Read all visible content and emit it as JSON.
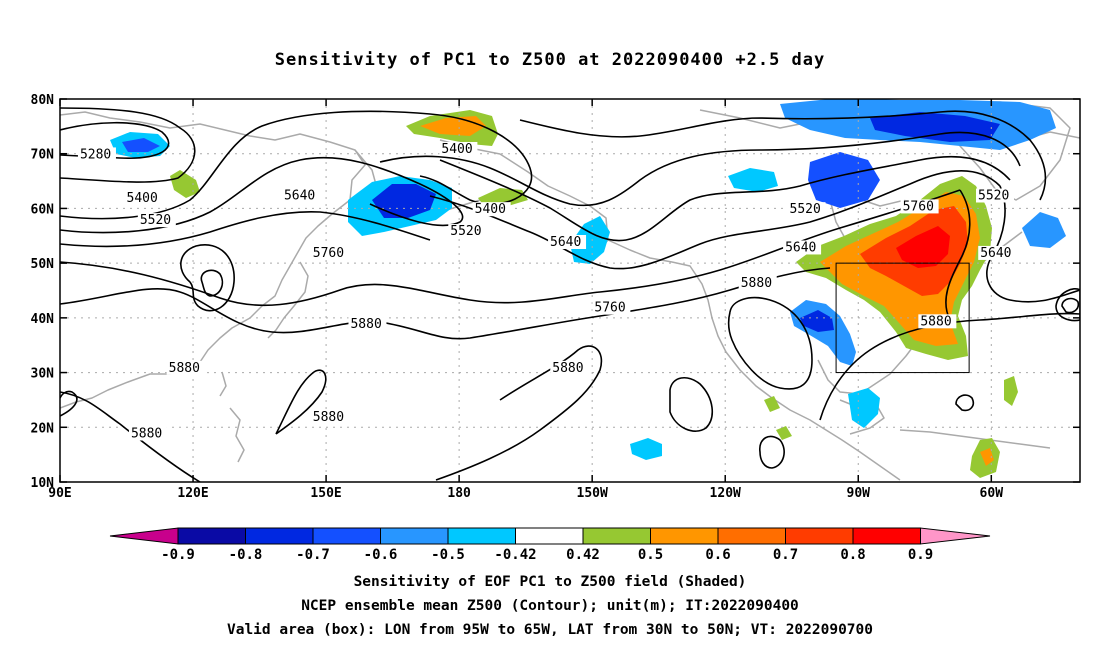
{
  "title": "Sensitivity of PC1 to Z500 at 2022090400 +2.5 day",
  "captions": [
    "Sensitivity of EOF PC1 to Z500 field (Shaded)",
    "NCEP ensemble mean Z500 (Contour); unit(m); IT:2022090400",
    "Valid area (box): LON from 95W to 65W, LAT from 30N to 50N; VT: 2022090700"
  ],
  "map": {
    "lon_range": [
      90,
      320
    ],
    "lat_range": [
      10,
      80
    ],
    "lat_ticks": [
      {
        "lat": 80,
        "label": "80N"
      },
      {
        "lat": 70,
        "label": "70N"
      },
      {
        "lat": 60,
        "label": "60N"
      },
      {
        "lat": 50,
        "label": "50N"
      },
      {
        "lat": 40,
        "label": "40N"
      },
      {
        "lat": 30,
        "label": "30N"
      },
      {
        "lat": 20,
        "label": "20N"
      },
      {
        "lat": 10,
        "label": "10N"
      }
    ],
    "lon_ticks": [
      {
        "lon": 90,
        "label": "90E"
      },
      {
        "lon": 120,
        "label": "120E"
      },
      {
        "lon": 150,
        "label": "150E"
      },
      {
        "lon": 180,
        "label": "180"
      },
      {
        "lon": 210,
        "label": "150W"
      },
      {
        "lon": 240,
        "label": "120W"
      },
      {
        "lon": 270,
        "label": "90W"
      },
      {
        "lon": 300,
        "label": "60W"
      }
    ],
    "valid_box": {
      "lon": [
        265,
        295
      ],
      "lat": [
        30,
        50
      ]
    },
    "colors": {
      "land": "#aaaaaa",
      "grid": "#aaaaaa",
      "contour": "#000000",
      "box": "#000000"
    }
  },
  "contour_labels": [
    {
      "text": "5280",
      "lon": 94.5,
      "lat": 69.5
    },
    {
      "text": "5400",
      "lon": 105,
      "lat": 61.5
    },
    {
      "text": "5520",
      "lon": 108,
      "lat": 57.5
    },
    {
      "text": "5760",
      "lon": 147,
      "lat": 51.5
    },
    {
      "text": "5640",
      "lon": 140.5,
      "lat": 62
    },
    {
      "text": "5400",
      "lon": 176,
      "lat": 70.5
    },
    {
      "text": "5400",
      "lon": 183.5,
      "lat": 59.5
    },
    {
      "text": "5520",
      "lon": 178,
      "lat": 55.5
    },
    {
      "text": "5640",
      "lon": 200.5,
      "lat": 53.5
    },
    {
      "text": "5880",
      "lon": 155.5,
      "lat": 38.5
    },
    {
      "text": "5880",
      "lon": 114.5,
      "lat": 30.5
    },
    {
      "text": "5880",
      "lon": 106,
      "lat": 18.5
    },
    {
      "text": "5880",
      "lon": 147,
      "lat": 21.5
    },
    {
      "text": "5880",
      "lon": 201,
      "lat": 30.5
    },
    {
      "text": "5760",
      "lon": 210.5,
      "lat": 41.5
    },
    {
      "text": "5880",
      "lon": 243.5,
      "lat": 46
    },
    {
      "text": "5520",
      "lon": 254.5,
      "lat": 59.5
    },
    {
      "text": "5640",
      "lon": 253.5,
      "lat": 52.5
    },
    {
      "text": "5760",
      "lon": 280,
      "lat": 60
    },
    {
      "text": "5520",
      "lon": 297,
      "lat": 62
    },
    {
      "text": "5640",
      "lon": 297.5,
      "lat": 51.5
    },
    {
      "text": "5880",
      "lon": 284,
      "lat": 39
    }
  ],
  "colorbar": {
    "labels": [
      "-0.9",
      "-0.8",
      "-0.7",
      "-0.6",
      "-0.5",
      "-0.42",
      "0.42",
      "0.5",
      "0.6",
      "0.7",
      "0.8",
      "0.9"
    ],
    "colors": [
      "#c8008c",
      "#0a0aa5",
      "#0028e1",
      "#1450ff",
      "#2896ff",
      "#00c8ff",
      "#ffffff",
      "#96c832",
      "#ff9600",
      "#ff6e00",
      "#ff3c00",
      "#ff0000",
      "#ff96c8"
    ]
  }
}
